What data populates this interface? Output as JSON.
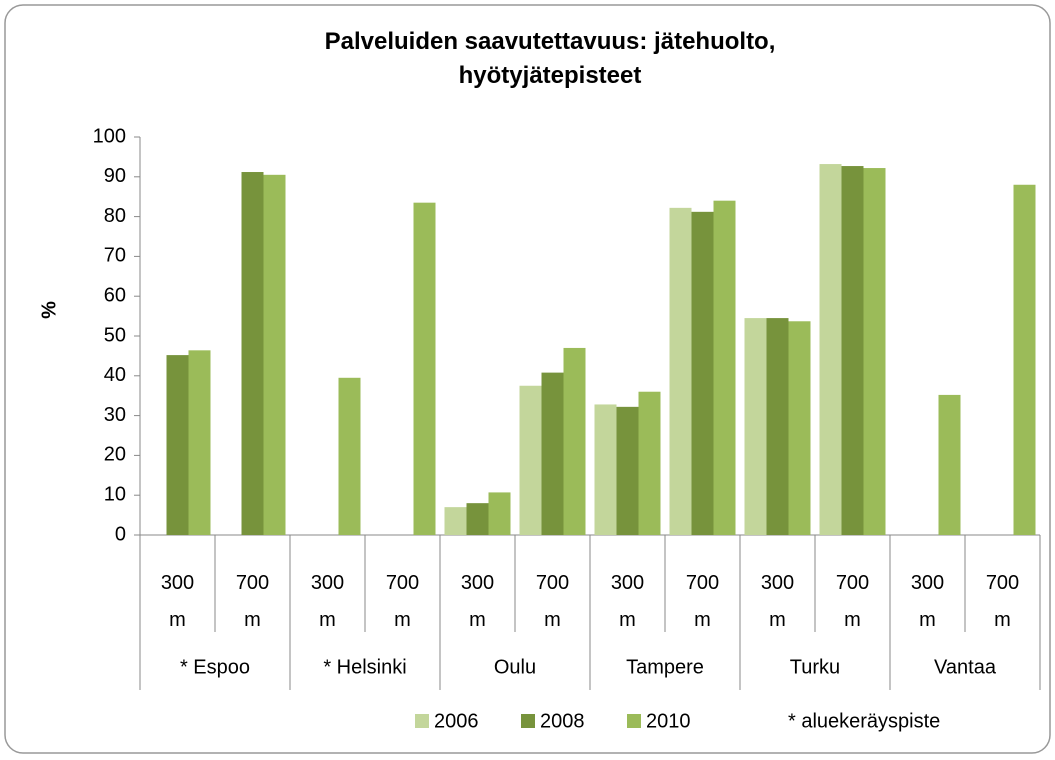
{
  "chart_data": {
    "type": "bar",
    "title": "Palveluiden saavutettavuus: jätehuolto, hyötyjätepisteet",
    "ylabel": "%",
    "categories": [
      "300 m",
      "700 m",
      "300 m",
      "700 m",
      "300 m",
      "700 m",
      "300 m",
      "700 m",
      "300 m",
      "700 m",
      "300 m",
      "700 m"
    ],
    "groups": [
      "* Espoo",
      "* Helsinki",
      "Oulu",
      "Tampere",
      "Turku",
      "Vantaa"
    ],
    "series": [
      {
        "name": "2006",
        "color": "#c3d69b",
        "values": [
          null,
          null,
          null,
          null,
          7,
          37.5,
          32.8,
          82.2,
          54.5,
          93.2,
          null,
          null
        ]
      },
      {
        "name": "2008",
        "color": "#77933c",
        "values": [
          45.2,
          91.2,
          null,
          null,
          8,
          40.8,
          32.2,
          81.2,
          54.5,
          92.7,
          null,
          null
        ]
      },
      {
        "name": "2010",
        "color": "#9bbb59",
        "values": [
          46.4,
          90.5,
          39.5,
          83.5,
          10.7,
          47,
          36,
          84,
          53.7,
          92.2,
          35.2,
          88
        ]
      }
    ],
    "legend_note": "* aluekeräyspiste",
    "ylim": [
      0,
      100
    ],
    "yticks": [
      0,
      10,
      20,
      30,
      40,
      50,
      60,
      70,
      80,
      90,
      100
    ],
    "grid": false,
    "legend": "bottom"
  }
}
